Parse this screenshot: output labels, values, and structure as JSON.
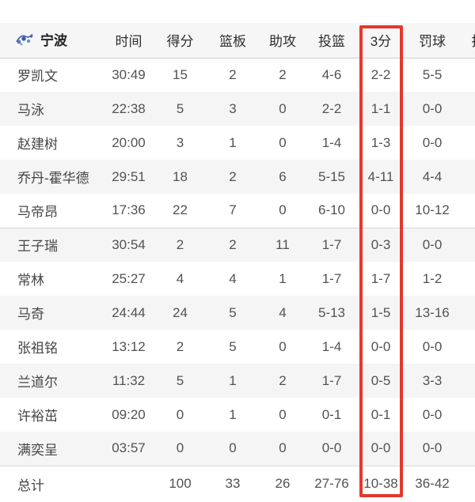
{
  "team": {
    "name": "宁波"
  },
  "columns": {
    "time": "时间",
    "points": "得分",
    "rebounds": "篮板",
    "assists": "助攻",
    "fg": "投篮",
    "three": "3分",
    "ft": "罚球",
    "clipped": "抢"
  },
  "highlight": {
    "column": "3分",
    "color": "#e2392b"
  },
  "players": [
    {
      "name": "罗凯文",
      "time": "30:49",
      "points": "15",
      "rebounds": "2",
      "assists": "2",
      "fg": "4-6",
      "three": "2-2",
      "ft": "5-5"
    },
    {
      "name": "马泳",
      "time": "22:38",
      "points": "5",
      "rebounds": "3",
      "assists": "0",
      "fg": "2-2",
      "three": "1-1",
      "ft": "0-0"
    },
    {
      "name": "赵建树",
      "time": "20:00",
      "points": "3",
      "rebounds": "1",
      "assists": "0",
      "fg": "1-4",
      "three": "1-3",
      "ft": "0-0"
    },
    {
      "name": "乔丹-霍华德",
      "time": "29:51",
      "points": "18",
      "rebounds": "2",
      "assists": "6",
      "fg": "5-15",
      "three": "4-11",
      "ft": "4-4"
    },
    {
      "name": "马帝昂",
      "time": "17:36",
      "points": "22",
      "rebounds": "7",
      "assists": "0",
      "fg": "6-10",
      "three": "0-0",
      "ft": "10-12"
    },
    {
      "name": "王子瑞",
      "time": "30:54",
      "points": "2",
      "rebounds": "2",
      "assists": "11",
      "fg": "1-7",
      "three": "0-3",
      "ft": "0-0"
    },
    {
      "name": "常林",
      "time": "25:27",
      "points": "4",
      "rebounds": "4",
      "assists": "1",
      "fg": "1-7",
      "three": "1-7",
      "ft": "1-2"
    },
    {
      "name": "马奇",
      "time": "24:44",
      "points": "24",
      "rebounds": "5",
      "assists": "4",
      "fg": "5-13",
      "three": "1-5",
      "ft": "13-16"
    },
    {
      "name": "张祖铭",
      "time": "13:12",
      "points": "2",
      "rebounds": "5",
      "assists": "0",
      "fg": "1-4",
      "three": "0-0",
      "ft": "0-0"
    },
    {
      "name": "兰道尔",
      "time": "11:32",
      "points": "5",
      "rebounds": "1",
      "assists": "2",
      "fg": "1-7",
      "three": "0-5",
      "ft": "3-3"
    },
    {
      "name": "许裕茁",
      "time": "09:20",
      "points": "0",
      "rebounds": "1",
      "assists": "0",
      "fg": "0-1",
      "three": "0-1",
      "ft": "0-0"
    },
    {
      "name": "满奕呈",
      "time": "03:57",
      "points": "0",
      "rebounds": "0",
      "assists": "0",
      "fg": "0-0",
      "three": "0-0",
      "ft": "0-0"
    }
  ],
  "starters_count": 5,
  "totals": {
    "label": "总计",
    "time": "",
    "points": "100",
    "rebounds": "33",
    "assists": "26",
    "fg": "27-76",
    "three": "10-38",
    "ft": "36-42"
  }
}
